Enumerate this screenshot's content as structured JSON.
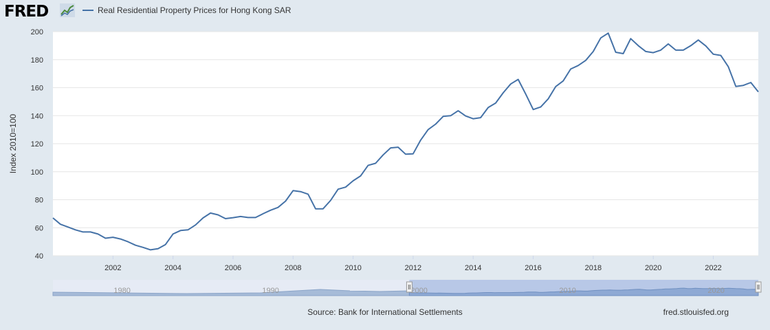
{
  "header": {
    "logo_text": "FRED",
    "series_label": "Real Residential Property Prices for Hong Kong SAR"
  },
  "footer": {
    "source": "Source: Bank for International Settlements",
    "site": "fred.stlouisfed.org"
  },
  "colors": {
    "series": "#4572a7",
    "navigator_fill": "#a6bbd8",
    "navigator_selection": "#b3c4e6",
    "background": "#e1e9f0"
  },
  "icons": {
    "logo_mark": "chart-trend-icon",
    "handle": "drag-handle-icon"
  },
  "chart_data": {
    "type": "line",
    "ylabel": "Index 2010=100",
    "xlabel": "",
    "ylim": [
      40,
      200
    ],
    "xlim": [
      2000.0,
      2023.5
    ],
    "yticks": [
      40,
      60,
      80,
      100,
      120,
      140,
      160,
      180,
      200
    ],
    "xticks": [
      2002,
      2004,
      2006,
      2008,
      2010,
      2012,
      2014,
      2016,
      2018,
      2020,
      2022
    ],
    "grid": true,
    "legend": "top-left",
    "series": [
      {
        "x": [
          2000.0,
          2000.25,
          2000.5,
          2000.75,
          2001.0,
          2001.25,
          2001.5,
          2001.75,
          2002.0,
          2002.25,
          2002.5,
          2002.75,
          2003.0,
          2003.25,
          2003.5,
          2003.75,
          2004.0,
          2004.25,
          2004.5,
          2004.75,
          2005.0,
          2005.25,
          2005.5,
          2005.75,
          2006.0,
          2006.25,
          2006.5,
          2006.75,
          2007.0,
          2007.25,
          2007.5,
          2007.75,
          2008.0,
          2008.25,
          2008.5,
          2008.75,
          2009.0,
          2009.25,
          2009.5,
          2009.75,
          2010.0,
          2010.25,
          2010.5,
          2010.75,
          2011.0,
          2011.25,
          2011.5,
          2011.75,
          2012.0,
          2012.25,
          2012.5,
          2012.75,
          2013.0,
          2013.25,
          2013.5,
          2013.75,
          2014.0,
          2014.25,
          2014.5,
          2014.75,
          2015.0,
          2015.25,
          2015.5,
          2015.75,
          2016.0,
          2016.25,
          2016.5,
          2016.75,
          2017.0,
          2017.25,
          2017.5,
          2017.75,
          2018.0,
          2018.25,
          2018.5,
          2018.75,
          2019.0,
          2019.25,
          2019.5,
          2019.75,
          2020.0,
          2020.25,
          2020.5,
          2020.75,
          2021.0,
          2021.25,
          2021.5,
          2021.75,
          2022.0,
          2022.25,
          2022.5,
          2022.75,
          2023.0,
          2023.25,
          2023.5
        ],
        "values": [
          67,
          62.5,
          60.5,
          58.5,
          57,
          57,
          55.5,
          52.5,
          53.2,
          52,
          50,
          47.5,
          46,
          44.2,
          45,
          48,
          55.5,
          58,
          58.5,
          62,
          67,
          70.5,
          69.2,
          66.5,
          67.2,
          68,
          67.3,
          67.3,
          70,
          72.5,
          74.5,
          79,
          86.5,
          85.8,
          84,
          73.5,
          73.5,
          79.5,
          87.5,
          89,
          93.5,
          97,
          104.5,
          106,
          112,
          117,
          117.5,
          112.5,
          112.8,
          122.5,
          130,
          134,
          139.5,
          140,
          143.5,
          139.8,
          137.8,
          138.6,
          145.8,
          149,
          156.3,
          162.6,
          165.9,
          155.5,
          144.4,
          146.2,
          152,
          160.8,
          164.8,
          173.3,
          175.8,
          179.5,
          185.8,
          195.5,
          198.9,
          185.3,
          184.3,
          195,
          190,
          185.8,
          185,
          186.8,
          191.2,
          186.8,
          186.8,
          190,
          194,
          189.8,
          183.9,
          183,
          175,
          160.9,
          161.6,
          163.7,
          157
        ]
      }
    ]
  },
  "navigator": {
    "labels": [
      "1980",
      "1990",
      "2000",
      "2010",
      "2020"
    ]
  }
}
